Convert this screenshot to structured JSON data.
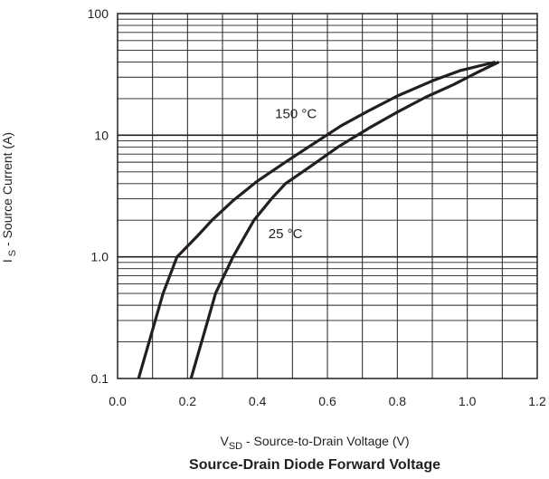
{
  "chart_data": {
    "type": "line",
    "title": "Source-Drain Diode Forward Voltage",
    "xlabel": {
      "main": "V",
      "sub": "SD",
      "rest": " - Source-to-Drain Voltage (V)"
    },
    "ylabel": {
      "main": "I",
      "sub": "S",
      "rest": " - Source Current (A)"
    },
    "xlim": [
      0.0,
      1.2
    ],
    "ylim": [
      0.1,
      100
    ],
    "yscale": "log",
    "grid": true,
    "x_ticks": [
      0.0,
      0.2,
      0.4,
      0.6,
      0.8,
      1.0,
      1.2
    ],
    "x_tick_labels": [
      "0.0",
      "0.2",
      "0.4",
      "0.6",
      "0.8",
      "1.0",
      "1.2"
    ],
    "y_ticks": [
      0.1,
      1,
      10,
      100
    ],
    "y_tick_labels": [
      "0.1",
      "1.0",
      "10",
      "100"
    ],
    "series": [
      {
        "name": "150 °C",
        "x": [
          0.06,
          0.13,
          0.17,
          0.23,
          0.27,
          0.33,
          0.4,
          0.48,
          0.56,
          0.64,
          0.72,
          0.8,
          0.9,
          0.98,
          1.08
        ],
        "y": [
          0.1,
          0.5,
          1.0,
          1.5,
          2.0,
          2.9,
          4.2,
          6.0,
          8.5,
          12,
          16,
          21,
          28,
          34,
          40
        ]
      },
      {
        "name": "25 °C",
        "x": [
          0.21,
          0.25,
          0.28,
          0.33,
          0.39,
          0.44,
          0.48,
          0.55,
          0.63,
          0.72,
          0.8,
          0.88,
          0.96,
          1.03,
          1.09
        ],
        "y": [
          0.1,
          0.25,
          0.5,
          1.0,
          2.0,
          3.0,
          4.0,
          5.5,
          8.0,
          11.5,
          15.5,
          20.5,
          26,
          33,
          40
        ]
      }
    ],
    "annotations": [
      {
        "text": "150 °C",
        "x": 0.51,
        "y": 15
      },
      {
        "text": "25 °C",
        "x": 0.48,
        "y": 1.55
      }
    ],
    "colors": {
      "line": "#231f20",
      "grid": "#231f20",
      "background": "#ffffff"
    }
  }
}
